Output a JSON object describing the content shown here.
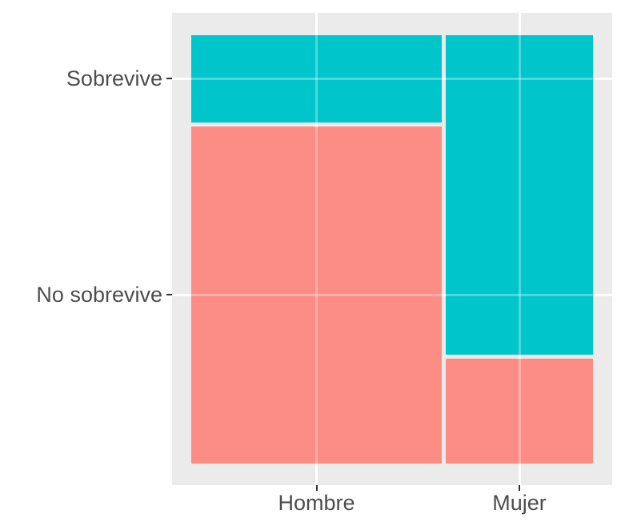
{
  "chart_data": {
    "type": "mosaic",
    "title": "",
    "xlabel": "",
    "ylabel": "",
    "legend": "none",
    "grid": "on",
    "x_axis": {
      "categories": [
        "Hombre",
        "Mujer"
      ],
      "width_fractions": [
        0.63,
        0.37
      ]
    },
    "y_axis": {
      "tick_labels": [
        "Sobrevive",
        "No sobrevive"
      ]
    },
    "cells": [
      {
        "x": "Hombre",
        "y": "Sobrevive",
        "fraction_of_column": 0.205,
        "color": "#00C6CB"
      },
      {
        "x": "Hombre",
        "y": "No sobrevive",
        "fraction_of_column": 0.795,
        "color": "#FC8D85"
      },
      {
        "x": "Mujer",
        "y": "Sobrevive",
        "fraction_of_column": 0.752,
        "color": "#00C6CB"
      },
      {
        "x": "Mujer",
        "y": "No sobrevive",
        "fraction_of_column": 0.248,
        "color": "#FC8D85"
      }
    ],
    "colors": {
      "sobrevive_fill": "#00C6CB",
      "no_sobrevive_fill": "#FC8D85",
      "panel_background": "#EBEBEB",
      "gridline": "#FFFFFF",
      "axis_text": "#4D4D4D",
      "tick_mark": "#333333"
    }
  }
}
